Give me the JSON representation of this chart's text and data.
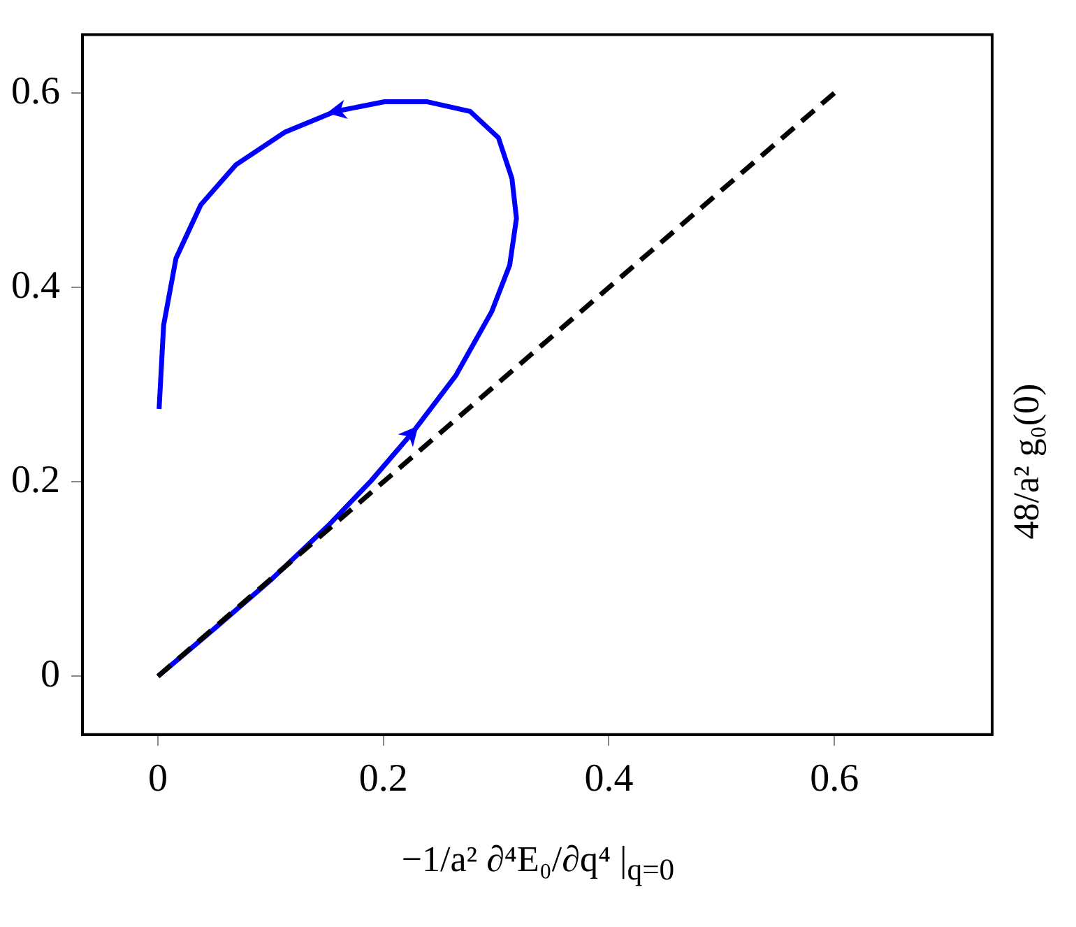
{
  "chart_data": {
    "type": "line",
    "xlabel": "−1/a² ∂⁴E₀/∂q⁴ |$_{q=0}$",
    "ylabel": "48/a² g₀(0)",
    "xlim": [
      -0.067,
      0.74
    ],
    "ylim": [
      -0.06,
      0.66
    ],
    "xticks": [
      0,
      0.2,
      0.4,
      0.6
    ],
    "yticks": [
      0,
      0.2,
      0.4,
      0.6
    ],
    "grid": false,
    "legend": false,
    "marker": "none",
    "series": [
      {
        "color": "#0000ff",
        "line_style": "solid",
        "x": [
          0,
          0.05,
          0.101,
          0.151,
          0.189,
          0.226,
          0.264,
          0.296,
          0.312,
          0.318,
          0.314,
          0.302,
          0.277,
          0.239,
          0.201,
          0.157,
          0.113,
          0.069,
          0.038,
          0.016,
          0.005,
          0.001
        ],
        "values": [
          0,
          0.049,
          0.1,
          0.155,
          0.201,
          0.251,
          0.309,
          0.375,
          0.423,
          0.471,
          0.512,
          0.554,
          0.581,
          0.591,
          0.591,
          0.581,
          0.56,
          0.526,
          0.485,
          0.43,
          0.361,
          0.275
        ]
      },
      {
        "color": "#000000",
        "line_style": "dashed",
        "x": [
          0,
          0.6
        ],
        "values": [
          0,
          0.6
        ]
      }
    ]
  }
}
